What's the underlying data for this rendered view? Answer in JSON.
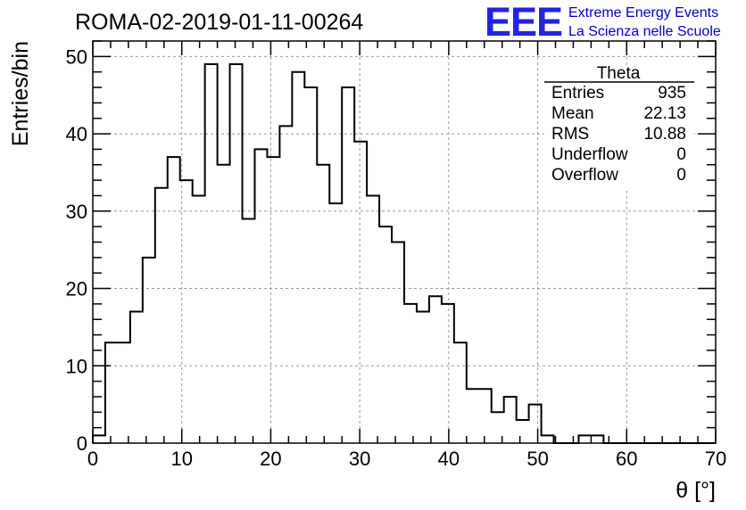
{
  "chart_data": {
    "type": "bar",
    "style": "histogram-step",
    "title": "ROMA-02-2019-01-11-00264",
    "xlabel": "θ [°]",
    "ylabel": "Entries/bin",
    "xlim": [
      0,
      70
    ],
    "ylim": [
      0,
      52
    ],
    "x_ticks": [
      "0",
      "10",
      "20",
      "30",
      "40",
      "50",
      "60",
      "70"
    ],
    "y_ticks": [
      "0",
      "10",
      "20",
      "30",
      "40",
      "50"
    ],
    "grid": true,
    "bin_width": 1.4,
    "values": [
      1,
      13,
      13,
      17,
      24,
      33,
      37,
      34,
      32,
      49,
      36,
      49,
      29,
      38,
      37,
      41,
      48,
      46,
      36,
      31,
      46,
      39,
      32,
      28,
      26,
      18,
      17,
      19,
      18,
      13,
      7,
      7,
      4,
      6,
      3,
      5,
      1,
      0,
      0,
      1,
      1,
      0,
      0,
      0,
      0,
      0,
      0,
      0,
      0,
      0
    ],
    "stats": {
      "name": "Theta",
      "rows": [
        {
          "label": "Entries",
          "value": "935"
        },
        {
          "label": "Mean",
          "value": "22.13"
        },
        {
          "label": "RMS",
          "value": "10.88"
        },
        {
          "label": "Underflow",
          "value": "0"
        },
        {
          "label": "Overflow",
          "value": "0"
        }
      ]
    }
  },
  "logo": {
    "mark": "EEE",
    "line1": "Extreme Energy Events",
    "line2": "La Scienza nelle Scuole",
    "color": "#2323e6"
  }
}
